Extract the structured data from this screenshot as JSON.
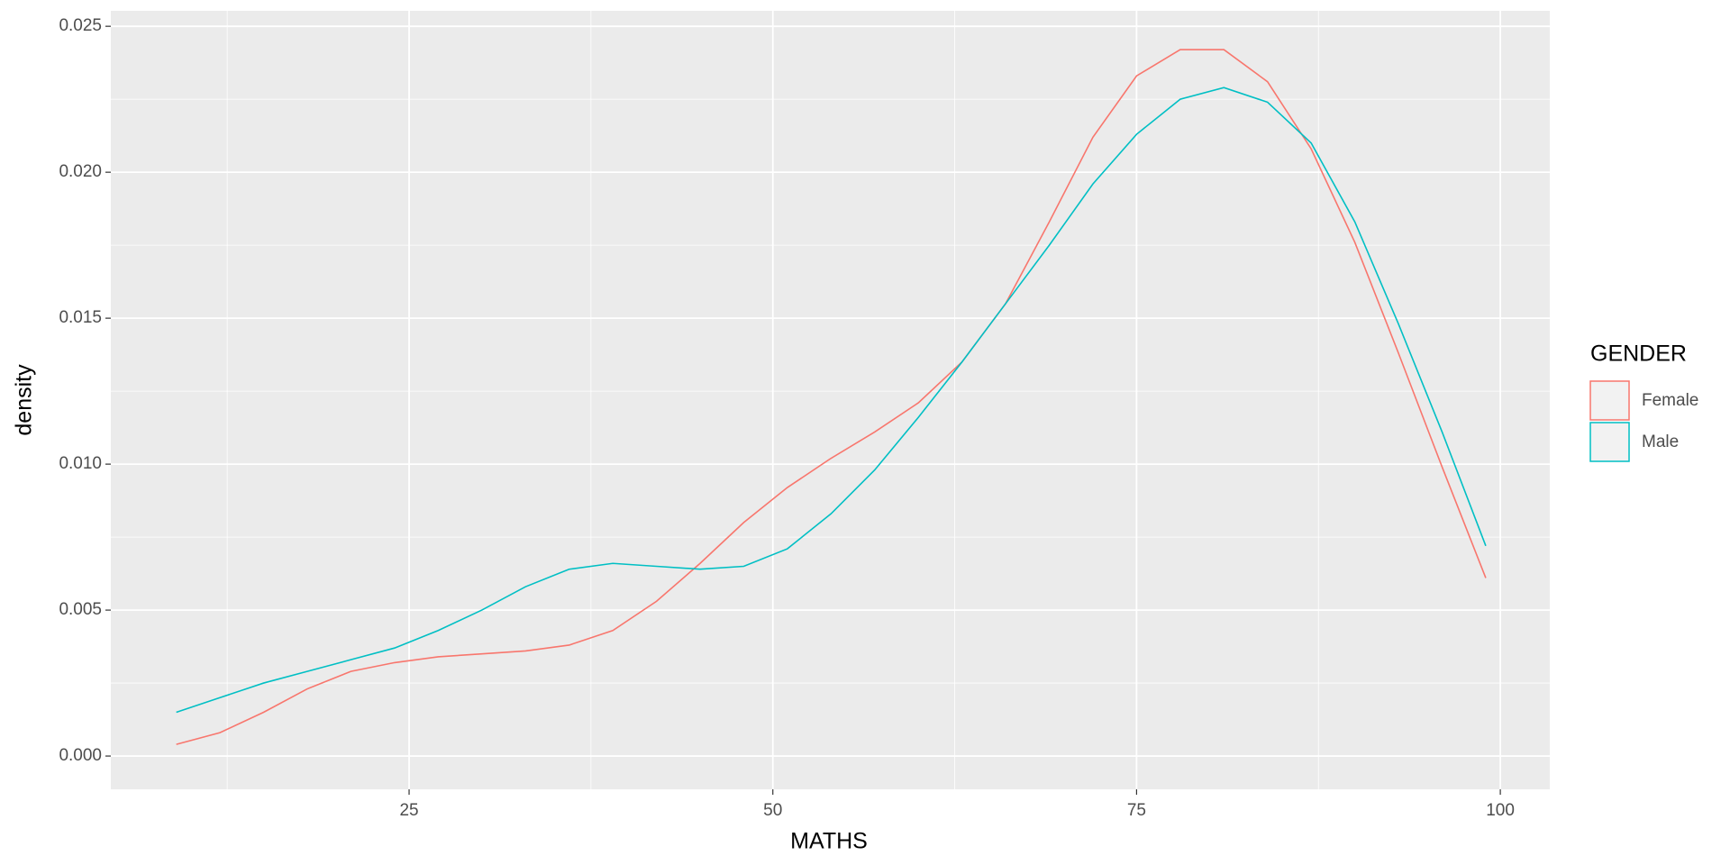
{
  "chart_data": {
    "type": "line",
    "xlabel": "MATHS",
    "ylabel": "density",
    "legend_title": "GENDER",
    "x": [
      9,
      12,
      15,
      18,
      21,
      24,
      27,
      30,
      33,
      36,
      39,
      42,
      45,
      48,
      51,
      54,
      57,
      60,
      63,
      66,
      69,
      72,
      75,
      78,
      81,
      84,
      87,
      90,
      93,
      96,
      99
    ],
    "series": [
      {
        "name": "Female",
        "color": "#F8766D",
        "values": [
          0.0004,
          0.0008,
          0.0015,
          0.0023,
          0.0029,
          0.0032,
          0.0034,
          0.0035,
          0.0036,
          0.0038,
          0.0043,
          0.0053,
          0.0066,
          0.008,
          0.0092,
          0.0102,
          0.0111,
          0.0121,
          0.0135,
          0.0155,
          0.0183,
          0.0212,
          0.0233,
          0.0242,
          0.0242,
          0.0231,
          0.0208,
          0.0176,
          0.0138,
          0.0099,
          0.0061
        ]
      },
      {
        "name": "Male",
        "color": "#00BFC4",
        "values": [
          0.0015,
          0.002,
          0.0025,
          0.0029,
          0.0033,
          0.0037,
          0.0043,
          0.005,
          0.0058,
          0.0064,
          0.0066,
          0.0065,
          0.0064,
          0.0065,
          0.0071,
          0.0083,
          0.0098,
          0.0116,
          0.0135,
          0.0155,
          0.0175,
          0.0196,
          0.0213,
          0.0225,
          0.0229,
          0.0224,
          0.021,
          0.0183,
          0.0148,
          0.0111,
          0.0072
        ]
      }
    ],
    "xlim": [
      4.5,
      103.4
    ],
    "ylim": [
      -0.00114,
      0.02553
    ],
    "xticks": [
      25,
      50,
      75,
      100
    ],
    "yticks": [
      {
        "value": 0,
        "label": "0.000"
      },
      {
        "value": 0.005,
        "label": "0.005"
      },
      {
        "value": 0.01,
        "label": "0.010"
      },
      {
        "value": 0.015,
        "label": "0.015"
      },
      {
        "value": 0.02,
        "label": "0.020"
      },
      {
        "value": 0.025,
        "label": "0.025"
      }
    ],
    "xminor": [
      12.5,
      37.5,
      62.5,
      87.5
    ],
    "yminor": [
      0.0025,
      0.0075,
      0.0125,
      0.0175,
      0.0225
    ],
    "grid": true,
    "legend": "right"
  }
}
